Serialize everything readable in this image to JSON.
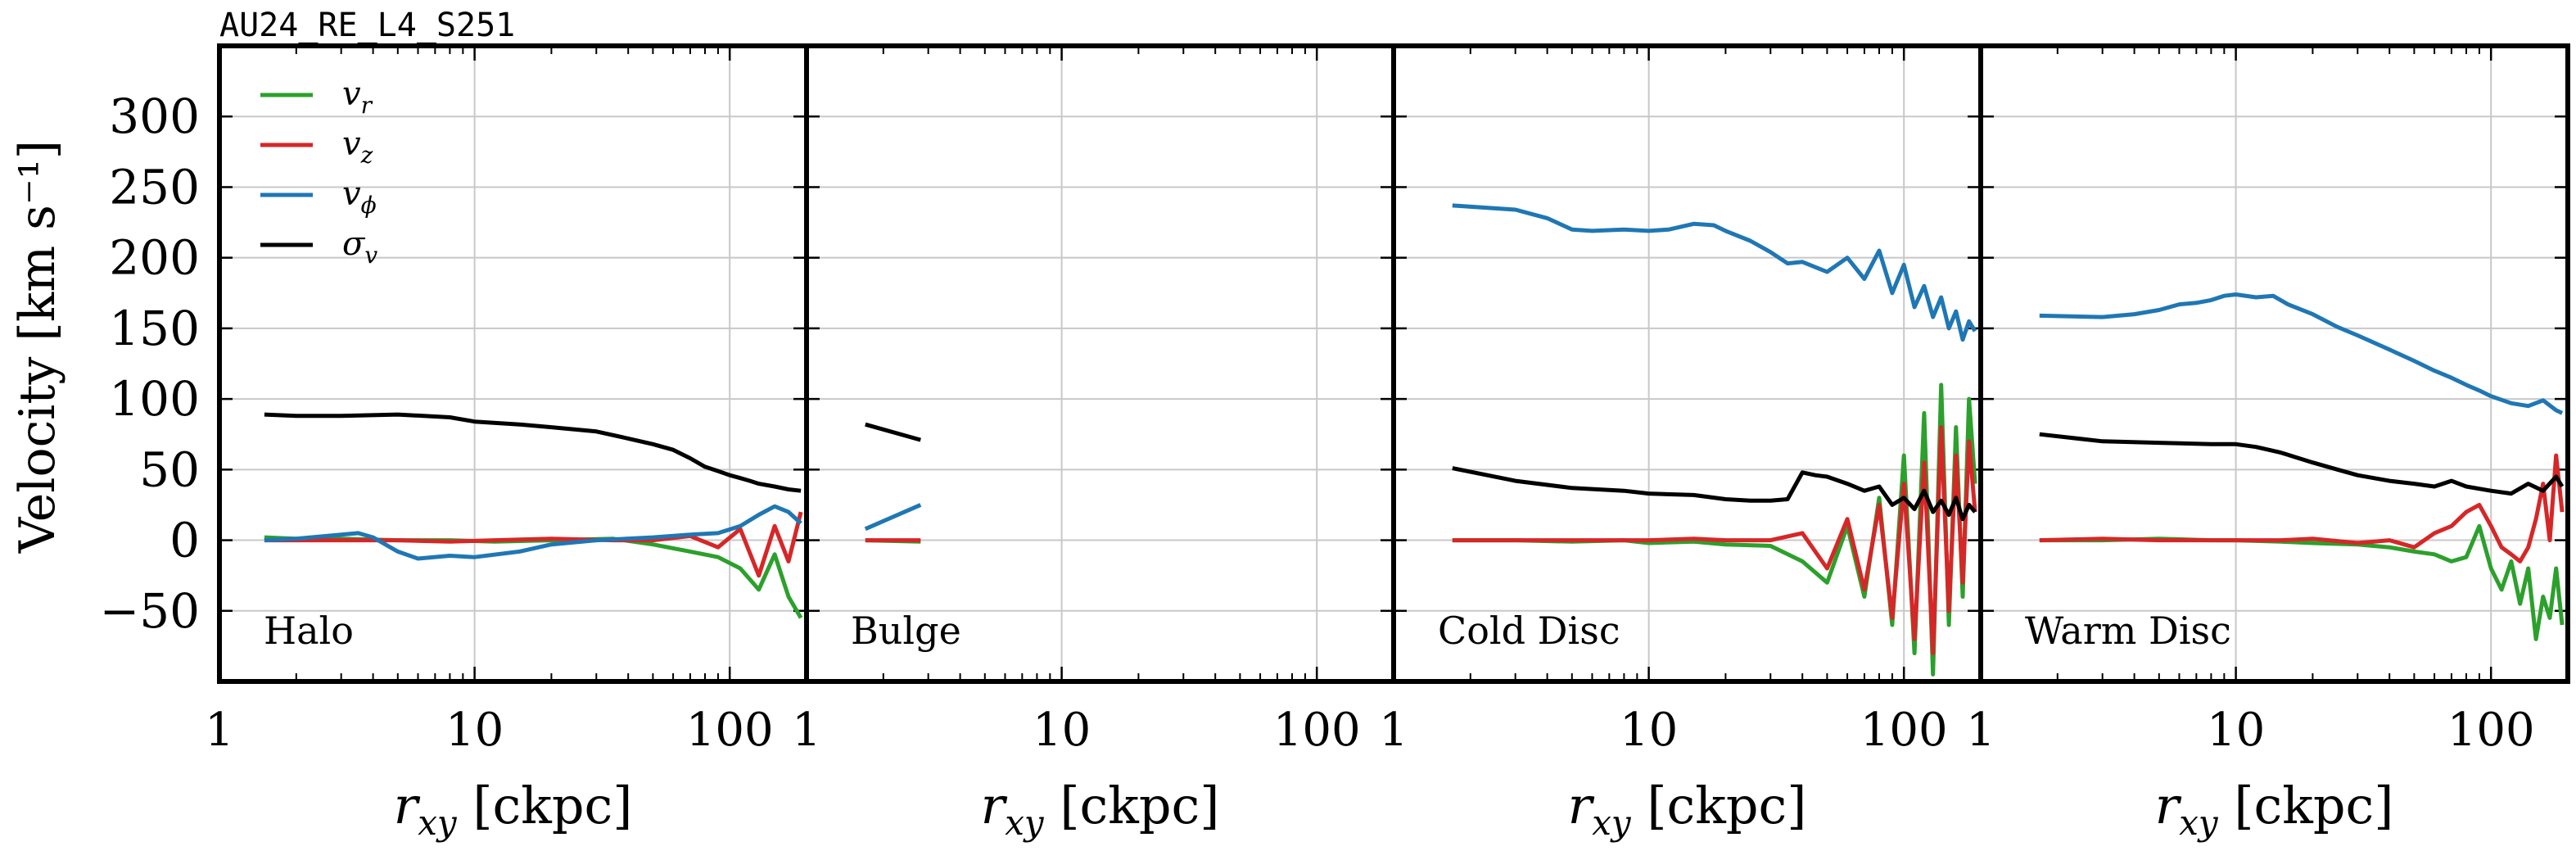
{
  "figure": {
    "title": "AU24_RE_L4_S251",
    "ylabel": "Velocity [km s⁻¹]",
    "xlabel": "r_xy [ckpc]"
  },
  "chart_data": {
    "type": "line",
    "x_scale": "log",
    "xlim": [
      1,
      200
    ],
    "ylim": [
      -100,
      350
    ],
    "y_ticks": [
      -50,
      0,
      50,
      100,
      150,
      200,
      250,
      300
    ],
    "y_tick_labels": [
      "−50",
      "0",
      "50",
      "100",
      "150",
      "200",
      "250",
      "300"
    ],
    "x_ticks": [
      1,
      10,
      100
    ],
    "x_tick_labels": [
      "1",
      "10",
      "100"
    ],
    "grid": true,
    "legend_position": "top-left",
    "legend": [
      {
        "key": "vr",
        "label": "v_r",
        "color": "#2ca02c"
      },
      {
        "key": "vz",
        "label": "v_z",
        "color": "#d62728"
      },
      {
        "key": "vphi",
        "label": "v_ϕ",
        "color": "#1f77b4"
      },
      {
        "key": "sigma",
        "label": "σ_v",
        "color": "#000000"
      }
    ],
    "panels": [
      {
        "label": "Halo",
        "series": {
          "vr": {
            "x": [
              1.5,
              2,
              3,
              5,
              8,
              12,
              20,
              35,
              50,
              70,
              90,
              110,
              130,
              150,
              170,
              190
            ],
            "y": [
              2,
              1,
              1,
              0,
              0,
              -1,
              0,
              1,
              -3,
              -8,
              -12,
              -20,
              -35,
              -10,
              -40,
              -55
            ]
          },
          "vz": {
            "x": [
              1.5,
              2,
              3,
              5,
              8,
              12,
              20,
              35,
              50,
              70,
              90,
              110,
              130,
              150,
              170,
              190
            ],
            "y": [
              0,
              0,
              0,
              0,
              -1,
              0,
              1,
              0,
              0,
              3,
              -5,
              8,
              -25,
              10,
              -15,
              20
            ]
          },
          "vphi": {
            "x": [
              1.5,
              2,
              3,
              3.5,
              4,
              5,
              6,
              8,
              10,
              15,
              20,
              30,
              50,
              70,
              90,
              110,
              130,
              150,
              170,
              190
            ],
            "y": [
              0,
              1,
              4,
              5,
              2,
              -8,
              -13,
              -11,
              -12,
              -8,
              -3,
              0,
              2,
              4,
              5,
              10,
              18,
              24,
              20,
              12
            ]
          },
          "sigma": {
            "x": [
              1.5,
              2,
              3,
              5,
              8,
              10,
              15,
              20,
              30,
              40,
              50,
              60,
              70,
              80,
              90,
              100,
              110,
              120,
              130,
              150,
              170,
              190
            ],
            "y": [
              89,
              88,
              88,
              89,
              87,
              84,
              82,
              80,
              77,
              72,
              68,
              64,
              58,
              52,
              49,
              46,
              44,
              42,
              40,
              38,
              36,
              35
            ]
          }
        }
      },
      {
        "label": "Bulge",
        "series": {
          "vr": {
            "x": [
              1.7,
              2.8
            ],
            "y": [
              0,
              -1
            ]
          },
          "vz": {
            "x": [
              1.7,
              2.8
            ],
            "y": [
              0,
              0
            ]
          },
          "vphi": {
            "x": [
              1.7,
              2.8
            ],
            "y": [
              8,
              25
            ]
          },
          "sigma": {
            "x": [
              1.7,
              2.8
            ],
            "y": [
              82,
              71
            ]
          }
        }
      },
      {
        "label": "Cold Disc",
        "series": {
          "vr": {
            "x": [
              1.7,
              3,
              5,
              8,
              10,
              15,
              20,
              30,
              40,
              50,
              60,
              70,
              80,
              90,
              100,
              110,
              120,
              130,
              140,
              150,
              160,
              170,
              180,
              190
            ],
            "y": [
              0,
              0,
              -1,
              0,
              -2,
              -1,
              -3,
              -4,
              -15,
              -30,
              10,
              -40,
              30,
              -60,
              60,
              -80,
              90,
              -95,
              110,
              -60,
              80,
              -40,
              100,
              40
            ]
          },
          "vz": {
            "x": [
              1.7,
              3,
              5,
              8,
              10,
              15,
              20,
              30,
              40,
              50,
              60,
              70,
              80,
              90,
              100,
              110,
              120,
              130,
              140,
              150,
              160,
              170,
              180,
              190
            ],
            "y": [
              0,
              0,
              0,
              0,
              0,
              1,
              0,
              0,
              5,
              -20,
              15,
              -35,
              25,
              -55,
              40,
              -70,
              55,
              -80,
              80,
              -50,
              60,
              -30,
              70,
              20
            ]
          },
          "vphi": {
            "x": [
              1.7,
              3,
              4,
              5,
              6,
              8,
              10,
              12,
              15,
              18,
              20,
              25,
              30,
              35,
              40,
              50,
              60,
              70,
              80,
              90,
              100,
              110,
              120,
              130,
              140,
              150,
              160,
              170,
              180,
              190
            ],
            "y": [
              237,
              234,
              228,
              220,
              219,
              220,
              219,
              220,
              224,
              223,
              219,
              212,
              204,
              196,
              197,
              190,
              200,
              185,
              205,
              175,
              195,
              165,
              180,
              158,
              172,
              150,
              162,
              142,
              155,
              148
            ]
          },
          "sigma": {
            "x": [
              1.7,
              3,
              5,
              8,
              10,
              15,
              20,
              25,
              30,
              35,
              40,
              45,
              50,
              60,
              70,
              80,
              90,
              100,
              110,
              120,
              130,
              140,
              150,
              160,
              170,
              180,
              190
            ],
            "y": [
              51,
              42,
              37,
              35,
              33,
              32,
              29,
              28,
              28,
              29,
              48,
              46,
              45,
              40,
              35,
              38,
              25,
              30,
              22,
              35,
              20,
              28,
              18,
              30,
              15,
              25,
              20
            ]
          }
        }
      },
      {
        "label": "Warm Disc",
        "series": {
          "vr": {
            "x": [
              1.7,
              3,
              5,
              8,
              10,
              15,
              20,
              30,
              40,
              50,
              60,
              70,
              80,
              90,
              100,
              110,
              120,
              130,
              140,
              150,
              160,
              170,
              180,
              190
            ],
            "y": [
              0,
              0,
              1,
              0,
              0,
              -1,
              -2,
              -3,
              -5,
              -8,
              -10,
              -15,
              -12,
              10,
              -20,
              -35,
              -15,
              -45,
              -20,
              -70,
              -40,
              -55,
              -20,
              -60
            ]
          },
          "vz": {
            "x": [
              1.7,
              3,
              5,
              8,
              10,
              15,
              20,
              30,
              40,
              50,
              60,
              70,
              80,
              90,
              100,
              110,
              120,
              130,
              140,
              150,
              160,
              170,
              180,
              190
            ],
            "y": [
              0,
              1,
              0,
              0,
              0,
              0,
              1,
              -2,
              0,
              -5,
              5,
              10,
              20,
              25,
              10,
              -5,
              -10,
              -15,
              -5,
              15,
              40,
              0,
              60,
              20
            ]
          },
          "vphi": {
            "x": [
              1.7,
              3,
              4,
              5,
              6,
              7,
              8,
              9,
              10,
              12,
              14,
              16,
              20,
              25,
              30,
              40,
              50,
              60,
              70,
              80,
              90,
              100,
              120,
              140,
              160,
              180,
              190
            ],
            "y": [
              159,
              158,
              160,
              163,
              167,
              168,
              170,
              173,
              174,
              172,
              173,
              167,
              160,
              151,
              145,
              135,
              127,
              120,
              115,
              110,
              106,
              102,
              97,
              95,
              99,
              92,
              90
            ]
          },
          "sigma": {
            "x": [
              1.7,
              3,
              5,
              8,
              10,
              12,
              15,
              20,
              25,
              30,
              40,
              50,
              60,
              70,
              80,
              100,
              120,
              140,
              160,
              180,
              190
            ],
            "y": [
              75,
              70,
              69,
              68,
              68,
              66,
              62,
              55,
              50,
              46,
              42,
              40,
              38,
              42,
              38,
              35,
              33,
              40,
              35,
              45,
              38
            ]
          }
        }
      }
    ]
  }
}
